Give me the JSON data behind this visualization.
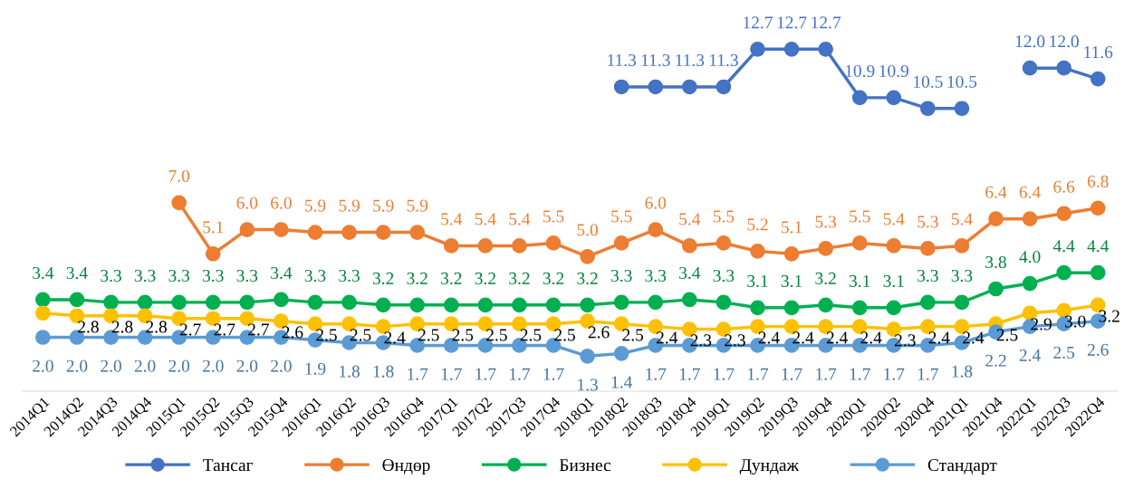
{
  "chart_data": {
    "type": "line",
    "categories": [
      "2014Q1",
      "2014Q2",
      "2014Q3",
      "2014Q4",
      "2015Q1",
      "2015Q2",
      "2015Q3",
      "2015Q4",
      "2016Q1",
      "2016Q2",
      "2016Q3",
      "2016Q4",
      "2017Q1",
      "2017Q2",
      "2017Q3",
      "2017Q4",
      "2018Q1",
      "2018Q2",
      "2018Q3",
      "2018Q4",
      "2019Q1",
      "2019Q2",
      "2019Q3",
      "2019Q4",
      "2020Q1",
      "2020Q2",
      "2020Q4",
      "2021Q1",
      "2021Q4",
      "2022Q1",
      "2022Q3",
      "2022Q4"
    ],
    "series": [
      {
        "name": "Тансаг",
        "color": "#4472c4",
        "values": [
          null,
          null,
          null,
          null,
          null,
          null,
          null,
          null,
          null,
          null,
          null,
          null,
          null,
          null,
          null,
          null,
          null,
          11.3,
          11.3,
          11.3,
          11.3,
          12.7,
          12.7,
          12.7,
          10.9,
          10.9,
          10.5,
          10.5,
          null,
          12.0,
          12.0,
          11.6
        ],
        "value_labels": [
          null,
          null,
          null,
          null,
          null,
          null,
          null,
          null,
          null,
          null,
          null,
          null,
          null,
          null,
          null,
          null,
          null,
          "11.3",
          "11.3",
          "11.3",
          "11.3",
          "12.7",
          "12.7",
          "12.7",
          "10.9",
          "10.9",
          "10.5",
          "10.5",
          null,
          "12.0",
          "12.0",
          "11.6"
        ]
      },
      {
        "name": "Өндөр",
        "color": "#ed7d31",
        "values": [
          null,
          null,
          null,
          null,
          7.0,
          5.1,
          6.0,
          6.0,
          5.9,
          5.9,
          5.9,
          5.9,
          5.4,
          5.4,
          5.4,
          5.5,
          5.0,
          5.5,
          6.0,
          5.4,
          5.5,
          5.2,
          5.1,
          5.3,
          5.5,
          5.4,
          5.3,
          5.4,
          6.4,
          6.4,
          6.6,
          6.8
        ],
        "value_labels": [
          null,
          null,
          null,
          null,
          "7.0",
          "5.1",
          "6.0",
          "6.0",
          "5.9",
          "5.9",
          "5.9",
          "5.9",
          "5.4",
          "5.4",
          "5.4",
          "5.5",
          "5.0",
          "5.5",
          "6.0",
          "5.4",
          "5.5",
          "5.2",
          "5.1",
          "5.3",
          "5.5",
          "5.4",
          "5.3",
          "5.4",
          "6.4",
          "6.4",
          "6.6",
          "6.8"
        ]
      },
      {
        "name": "Бизнес",
        "color": "#00b050",
        "values": [
          3.4,
          3.4,
          3.3,
          3.3,
          3.3,
          3.3,
          3.3,
          3.4,
          3.3,
          3.3,
          3.2,
          3.2,
          3.2,
          3.2,
          3.2,
          3.2,
          3.2,
          3.3,
          3.3,
          3.4,
          3.3,
          3.1,
          3.1,
          3.2,
          3.1,
          3.1,
          3.3,
          3.3,
          3.8,
          4.0,
          4.4,
          4.4
        ],
        "value_labels": [
          "3.4",
          "3.4",
          "3.3",
          "3.3",
          "3.3",
          "3.3",
          "3.3",
          "3.4",
          "3.3",
          "3.3",
          "3.2",
          "3.2",
          "3.2",
          "3.2",
          "3.2",
          "3.2",
          "3.2",
          "3.3",
          "3.3",
          "3.4",
          "3.3",
          "3.1",
          "3.1",
          "3.2",
          "3.1",
          "3.1",
          "3.3",
          "3.3",
          "3.8",
          "4.0",
          "4.4",
          "4.4"
        ]
      },
      {
        "name": "Дундаж",
        "color": "#ffc000",
        "values": [
          2.9,
          2.8,
          2.8,
          2.8,
          2.7,
          2.7,
          2.7,
          2.6,
          2.5,
          2.5,
          2.4,
          2.5,
          2.5,
          2.5,
          2.5,
          2.5,
          2.6,
          2.5,
          2.4,
          2.3,
          2.3,
          2.4,
          2.4,
          2.4,
          2.4,
          2.3,
          2.4,
          2.4,
          2.5,
          2.9,
          3.0,
          3.2
        ],
        "value_labels": [
          null,
          "2.8",
          "2.8",
          "2.8",
          "2.7",
          "2.7",
          "2.7",
          "2.6",
          "2.5",
          "2.5",
          "2.4",
          "2.5",
          "2.5",
          "2.5",
          "2.5",
          "2.5",
          "2.6",
          "2.5",
          "2.4",
          "2.3",
          "2.3",
          "2.4",
          "2.4",
          "2.4",
          "2.4",
          "2.3",
          "2.4",
          "2.4",
          "2.5",
          "2.9",
          "3.0",
          "3.2"
        ]
      },
      {
        "name": "Стандарт",
        "color": "#5b9bd5",
        "values": [
          2.0,
          2.0,
          2.0,
          2.0,
          2.0,
          2.0,
          2.0,
          2.0,
          1.9,
          1.8,
          1.8,
          1.7,
          1.7,
          1.7,
          1.7,
          1.7,
          1.3,
          1.4,
          1.7,
          1.7,
          1.7,
          1.7,
          1.7,
          1.7,
          1.7,
          1.7,
          1.7,
          1.8,
          2.2,
          2.4,
          2.5,
          2.6
        ],
        "value_labels": [
          "2.0",
          "2.0",
          "2.0",
          "2.0",
          "2.0",
          "2.0",
          "2.0",
          "2.0",
          "1.9",
          "1.8",
          "1.8",
          "1.7",
          "1.7",
          "1.7",
          "1.7",
          "1.7",
          "1.3",
          "1.4",
          "1.7",
          "1.7",
          "1.7",
          "1.7",
          "1.7",
          "1.7",
          "1.7",
          "1.7",
          "1.7",
          "1.8",
          "2.2",
          "2.4",
          "2.5",
          "2.6"
        ]
      }
    ],
    "tick_labels": "x",
    "marker": "circle",
    "line_style": "solid",
    "legend": "bottom",
    "grid": false
  }
}
